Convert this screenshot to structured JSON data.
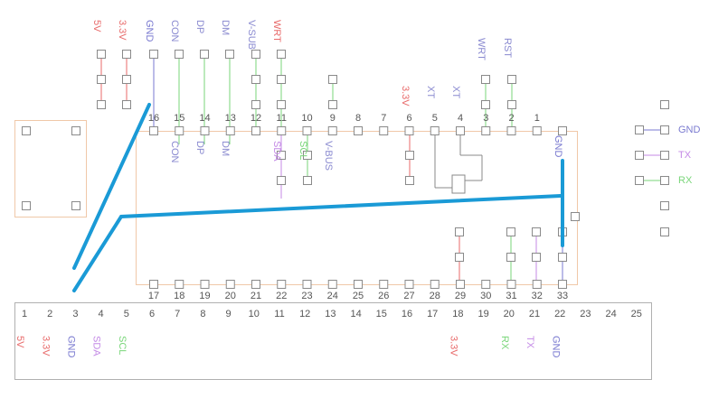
{
  "top_header_labels": [
    "5V",
    "3.3V",
    "GND",
    "CON",
    "DP",
    "DM",
    "V-SUB",
    "WRT"
  ],
  "chip": {
    "top_pins": [
      "16",
      "15",
      "14",
      "13",
      "12",
      "11",
      "10",
      "9",
      "8",
      "7",
      "6",
      "5",
      "4",
      "3",
      "2",
      "1"
    ],
    "top_gnd": "GND",
    "top_signal_labels": [
      "CON",
      "DP",
      "DM",
      "SDA",
      "SCL",
      "V-BUS"
    ],
    "upper_right_labels": [
      "3.3V",
      "XT",
      "XT",
      "WRT",
      "RST"
    ],
    "bottom_pins": [
      "17",
      "18",
      "19",
      "20",
      "21",
      "22",
      "23",
      "24",
      "25",
      "26",
      "27",
      "28",
      "29",
      "30",
      "31",
      "32",
      "33"
    ]
  },
  "connector": {
    "numbers": [
      "1",
      "2",
      "3",
      "4",
      "5",
      "6",
      "7",
      "8",
      "9",
      "10",
      "11",
      "12",
      "13",
      "14",
      "15",
      "16",
      "17",
      "18",
      "19",
      "20",
      "21",
      "22",
      "23",
      "24",
      "25"
    ],
    "labels": [
      "5V",
      "3.3V",
      "GND",
      "SDA",
      "SCL",
      "3.3V",
      "RX",
      "TX",
      "GND"
    ]
  },
  "right_header": [
    "GND",
    "TX",
    "RX"
  ]
}
